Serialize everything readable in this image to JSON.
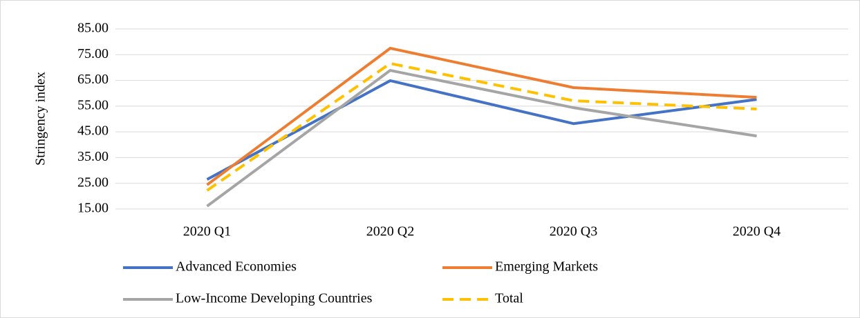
{
  "chart_data": {
    "type": "line",
    "y_label": "Stringency index",
    "categories": [
      "2020 Q1",
      "2020 Q2",
      "2020 Q3",
      "2020 Q4"
    ],
    "series": [
      {
        "name": "Advanced Economies",
        "color": "#4472c4",
        "values": [
          26.5,
          64.9,
          48.2,
          57.6
        ]
      },
      {
        "name": "Emerging Markets",
        "color": "#ed7d31",
        "values": [
          24.4,
          77.5,
          62.2,
          58.4
        ]
      },
      {
        "name": "Low-Income Developing Countries",
        "color": "#a5a5a5",
        "values": [
          16.1,
          68.9,
          54.4,
          43.4
        ]
      },
      {
        "name": "Total",
        "color": "#ffc000",
        "dashed": true,
        "values": [
          22.2,
          71.6,
          57.1,
          53.9
        ]
      }
    ],
    "ylim": [
      15,
      85
    ],
    "yticks": [
      {
        "value": 15,
        "label": "15.00"
      },
      {
        "value": 25,
        "label": "25.00"
      },
      {
        "value": 35,
        "label": "35.00"
      },
      {
        "value": 45,
        "label": "45.00"
      },
      {
        "value": 55,
        "label": "55.00"
      },
      {
        "value": 65,
        "label": "65.00"
      },
      {
        "value": 75,
        "label": "75.00"
      },
      {
        "value": 85,
        "label": "85.00"
      }
    ],
    "grid": true,
    "legend": "bottom"
  }
}
